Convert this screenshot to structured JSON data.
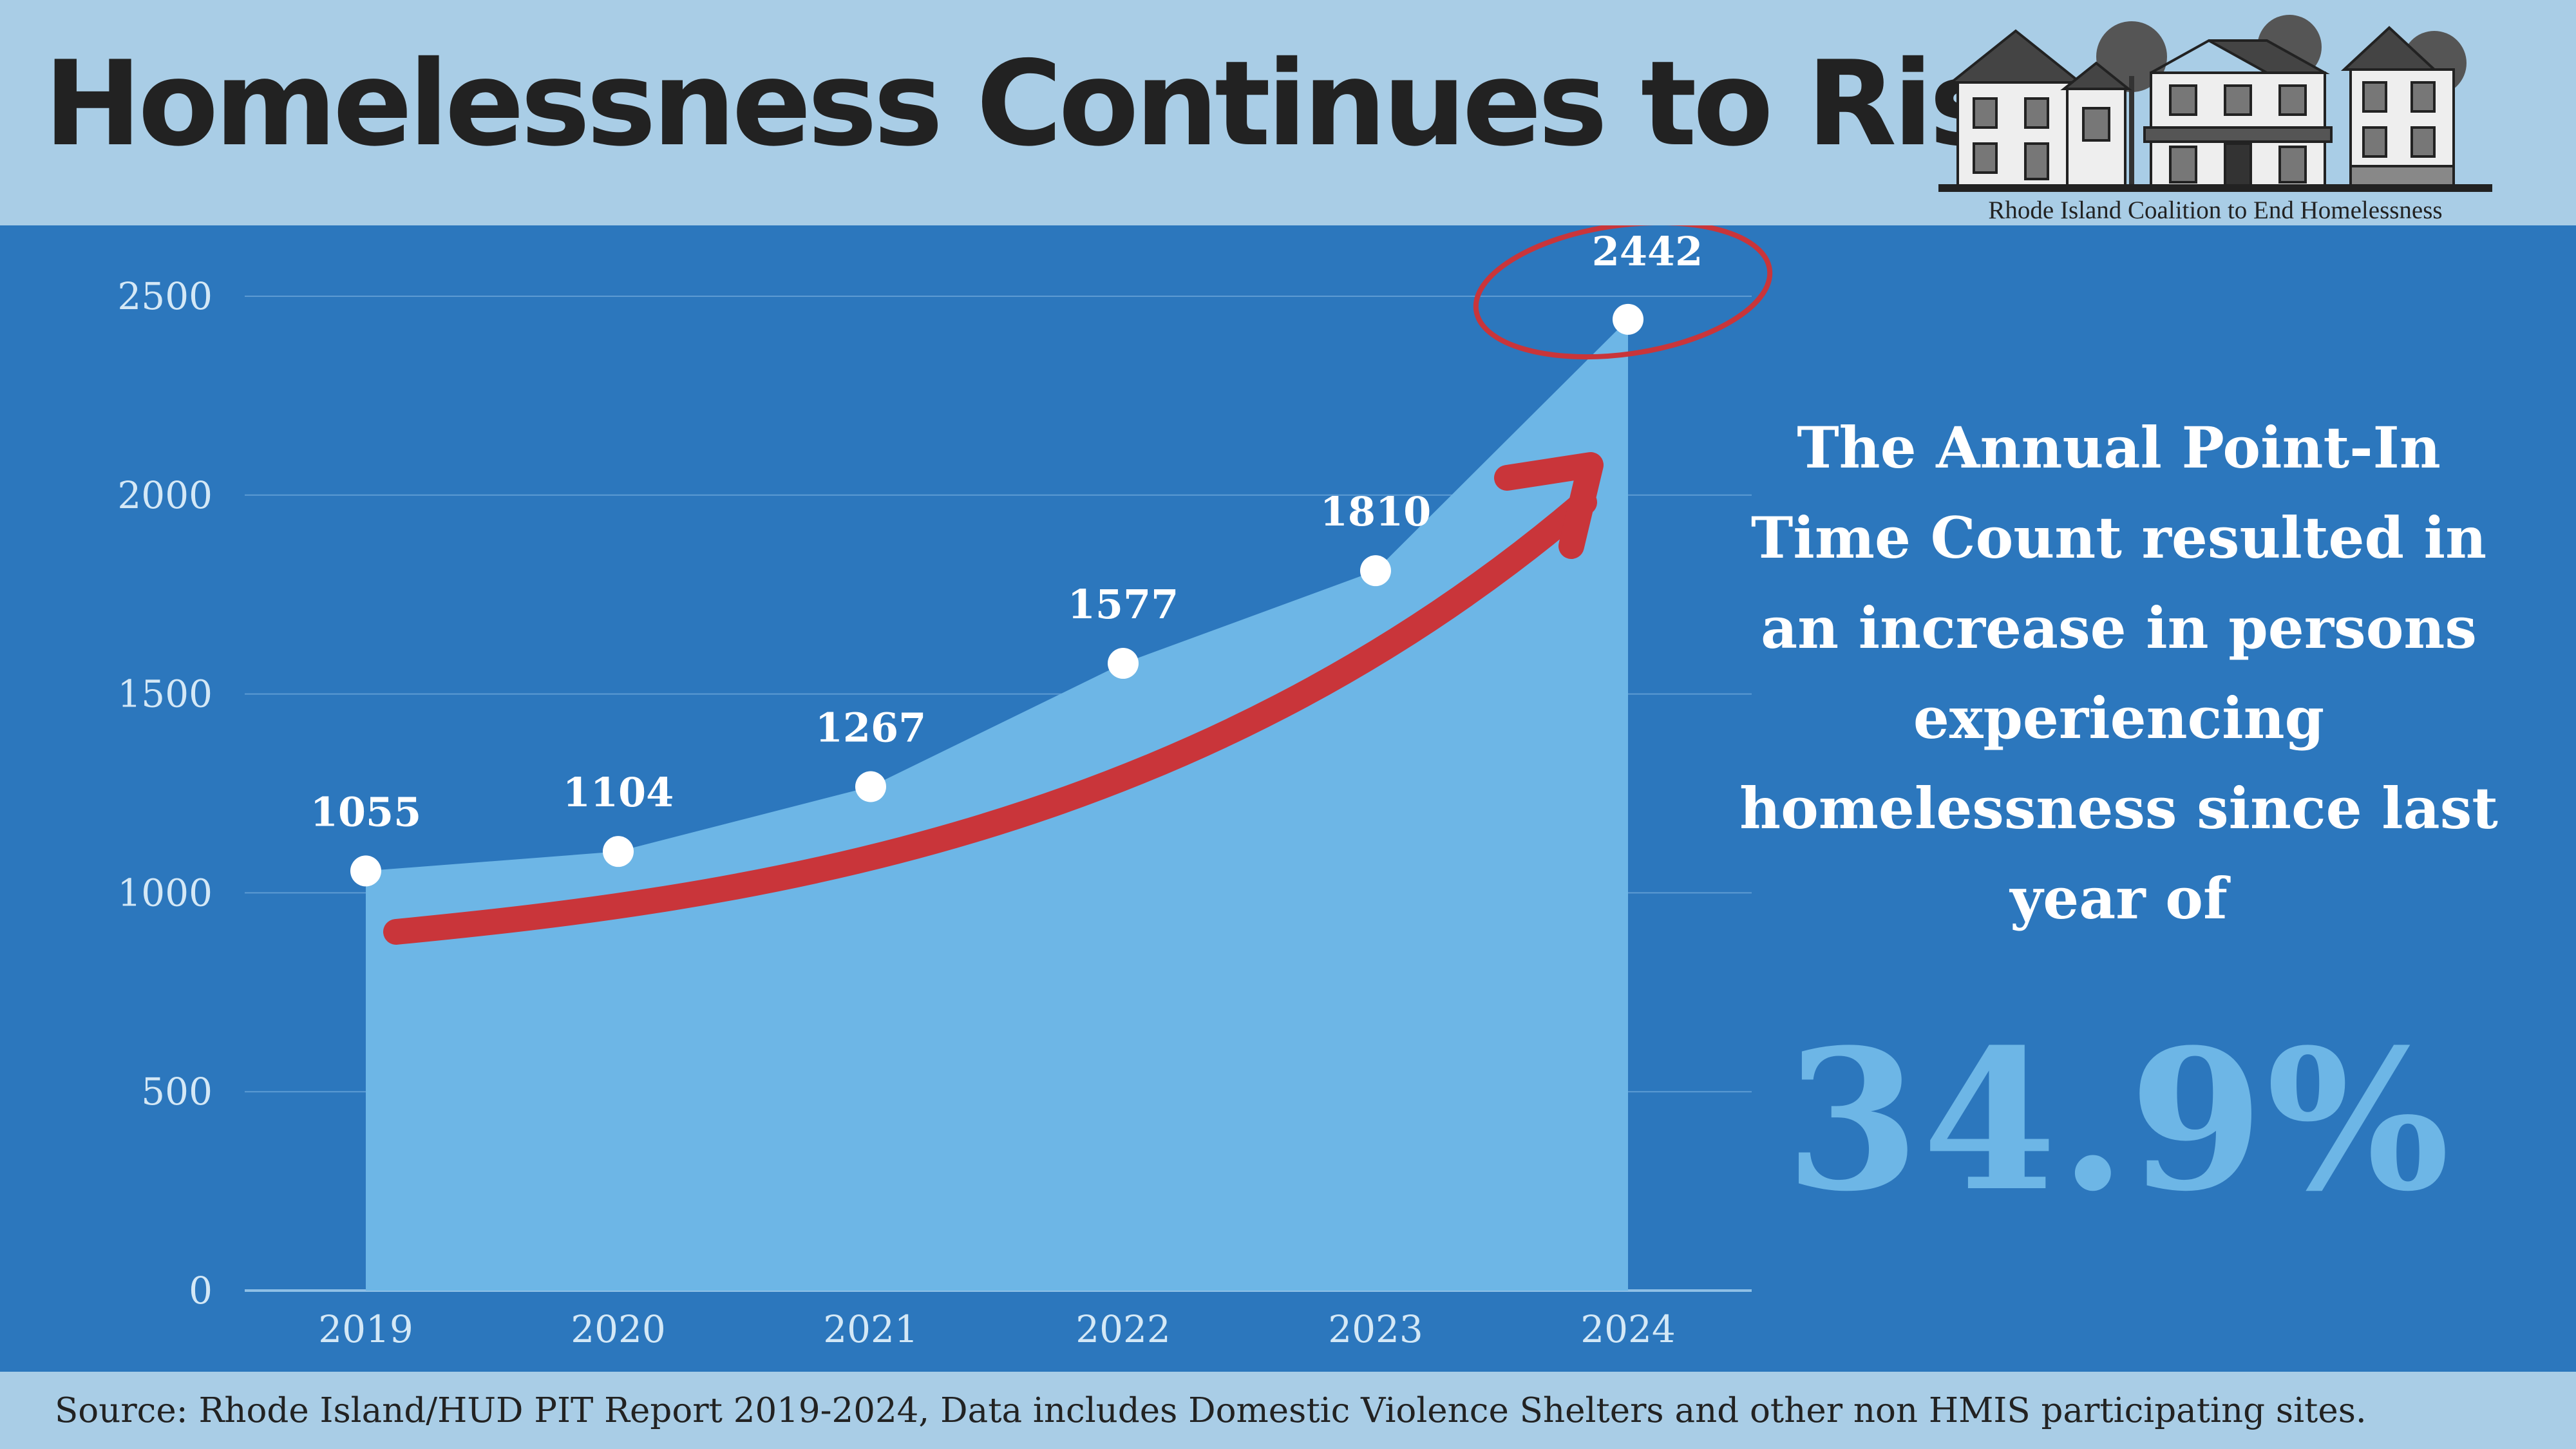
{
  "header": {
    "title": "Homelessness Continues to Rise",
    "logo_caption": "Rhode Island Coalition to End Homelessness"
  },
  "side": {
    "text": "The Annual Point-In Time Count resulted in an increase in persons experiencing homelessness since last year of",
    "stat": "34.9%"
  },
  "footer": {
    "source": "Source: Rhode Island/HUD PIT Report 2019-2024, Data includes Domestic Violence Shelters and other non HMIS participating sites."
  },
  "colors": {
    "background": "#a9cde6",
    "panel": "#2c77bd",
    "area": "#6db6e6",
    "arrow": "#c9353a",
    "text_dark": "#222222"
  },
  "chart_data": {
    "type": "area",
    "categories": [
      "2019",
      "2020",
      "2021",
      "2022",
      "2023",
      "2024"
    ],
    "values": [
      1055,
      1104,
      1267,
      1577,
      1810,
      2442
    ],
    "data_labels": [
      "1055",
      "1104",
      "1267",
      "1577",
      "1810",
      "2442"
    ],
    "ylim": [
      0,
      2500
    ],
    "yticks": [
      "0",
      "500",
      "1000",
      "1500",
      "2000",
      "2500"
    ],
    "grid": true,
    "highlight": "2024",
    "annotation": "upward trend arrow"
  }
}
